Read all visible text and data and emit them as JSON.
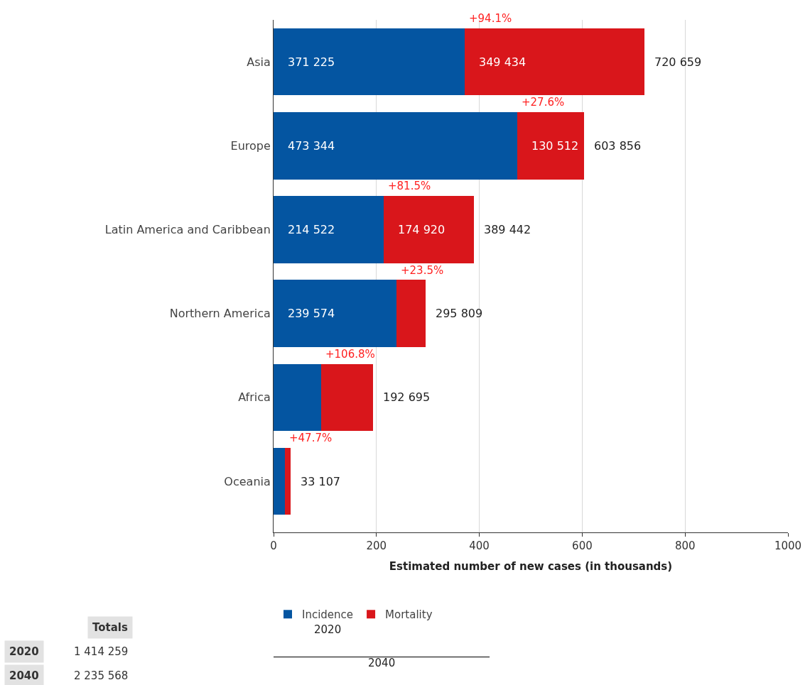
{
  "chart_data": {
    "type": "bar",
    "orientation": "horizontal",
    "stacked": true,
    "categories": [
      "Asia",
      "Europe",
      "Latin America and Caribbean",
      "Northern America",
      "Africa",
      "Oceania"
    ],
    "series": [
      {
        "name": "Incidence",
        "color": "#0455a1",
        "values": [
          371.2,
          473.3,
          214.5,
          239.6,
          93.2,
          22.4
        ]
      },
      {
        "name": "Mortality",
        "color": "#d9161b",
        "values": [
          349.4,
          130.5,
          174.9,
          56.2,
          99.5,
          10.7
        ]
      }
    ],
    "xlabel": "Estimated number of new cases (in thousands)",
    "xlim": [
      0,
      1000
    ],
    "xticks": [
      0,
      200,
      400,
      600,
      800,
      1000
    ],
    "grid": "x",
    "legend": "bottom",
    "annotations": [
      "+94.1%",
      "+27.6%",
      "+81.5%",
      "+23.5%",
      "+106.8%",
      "+47.7%",
      "371 225",
      "473 344",
      "214 522",
      "239 574",
      "349 434",
      "130 512",
      "174 920",
      "720 659",
      "603 856",
      "389 442",
      "295 809",
      "192 695",
      "33 107",
      "2020",
      "2040",
      "Totals",
      "2020",
      "1 414 259",
      "2040",
      "2 235 568"
    ]
  }
}
